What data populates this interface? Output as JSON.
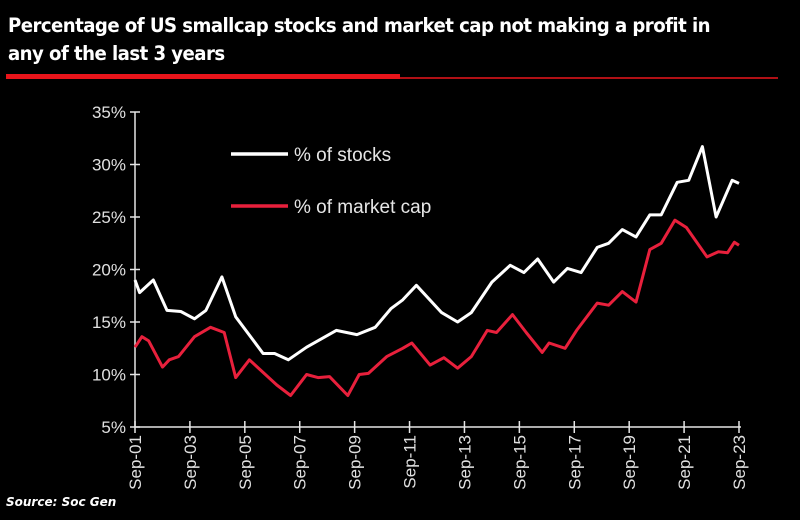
{
  "title": "Percentage of US smallcap stocks and market cap not making a profit in any of the last 3 years",
  "source": "Source: Soc Gen",
  "colors": {
    "background": "#000000",
    "stocks": "#ffffff",
    "market_cap": "#e8203c",
    "accent_rule": "#e8141a"
  },
  "chart_data": {
    "type": "line",
    "title": "",
    "xlabel": "",
    "ylabel": "",
    "ylim": [
      5,
      35
    ],
    "xlim": [
      "2001-09",
      "2023-09"
    ],
    "y_ticks": [
      "5%",
      "10%",
      "15%",
      "20%",
      "25%",
      "30%",
      "35%"
    ],
    "y_tick_values": [
      5,
      10,
      15,
      20,
      25,
      30,
      35
    ],
    "x_ticks": [
      "Sep-01",
      "Sep-03",
      "Sep-05",
      "Sep-07",
      "Sep-09",
      "Sep-11",
      "Sep-13",
      "Sep-15",
      "Sep-17",
      "Sep-19",
      "Sep-21",
      "Sep-23"
    ],
    "x_tick_values": [
      "2001-09",
      "2003-09",
      "2005-09",
      "2007-09",
      "2009-09",
      "2011-09",
      "2013-09",
      "2015-09",
      "2017-09",
      "2019-09",
      "2021-09",
      "2023-09"
    ],
    "grid": false,
    "legend_placement": "top-center",
    "series": [
      {
        "name": "% of stocks",
        "color": "#ffffff",
        "points": [
          [
            "2001-09",
            19.0
          ],
          [
            "2001-11",
            17.8
          ],
          [
            "2002-05",
            19.0
          ],
          [
            "2002-11",
            16.1
          ],
          [
            "2003-05",
            16.0
          ],
          [
            "2003-11",
            15.3
          ],
          [
            "2004-04",
            16.1
          ],
          [
            "2004-11",
            19.3
          ],
          [
            "2005-05",
            15.5
          ],
          [
            "2006-05",
            12.0
          ],
          [
            "2006-10",
            12.0
          ],
          [
            "2007-04",
            11.4
          ],
          [
            "2007-12",
            12.6
          ],
          [
            "2009-01",
            14.2
          ],
          [
            "2009-10",
            13.8
          ],
          [
            "2010-06",
            14.5
          ],
          [
            "2011-01",
            16.3
          ],
          [
            "2011-06",
            17.1
          ],
          [
            "2011-12",
            18.5
          ],
          [
            "2012-11",
            15.9
          ],
          [
            "2013-06",
            15.0
          ],
          [
            "2013-12",
            15.9
          ],
          [
            "2014-09",
            18.8
          ],
          [
            "2015-05",
            20.4
          ],
          [
            "2015-11",
            19.7
          ],
          [
            "2016-05",
            21.0
          ],
          [
            "2016-12",
            18.8
          ],
          [
            "2017-06",
            20.1
          ],
          [
            "2017-12",
            19.7
          ],
          [
            "2018-07",
            22.1
          ],
          [
            "2018-12",
            22.5
          ],
          [
            "2019-06",
            23.8
          ],
          [
            "2019-12",
            23.1
          ],
          [
            "2020-06",
            25.2
          ],
          [
            "2020-11",
            25.2
          ],
          [
            "2021-06",
            28.3
          ],
          [
            "2021-11",
            28.5
          ],
          [
            "2022-05",
            31.7
          ],
          [
            "2022-11",
            25.0
          ],
          [
            "2023-06",
            28.5
          ],
          [
            "2023-09",
            28.2
          ]
        ]
      },
      {
        "name": "% of market cap",
        "color": "#e8203c",
        "points": [
          [
            "2001-09",
            12.6
          ],
          [
            "2001-12",
            13.6
          ],
          [
            "2002-03",
            13.2
          ],
          [
            "2002-09",
            10.7
          ],
          [
            "2002-12",
            11.4
          ],
          [
            "2003-04",
            11.7
          ],
          [
            "2003-11",
            13.6
          ],
          [
            "2004-06",
            14.5
          ],
          [
            "2004-12",
            14.0
          ],
          [
            "2005-05",
            9.7
          ],
          [
            "2005-11",
            11.4
          ],
          [
            "2006-11",
            9.0
          ],
          [
            "2007-05",
            8.0
          ],
          [
            "2007-12",
            10.0
          ],
          [
            "2008-05",
            9.7
          ],
          [
            "2008-10",
            9.8
          ],
          [
            "2009-06",
            8.0
          ],
          [
            "2009-11",
            10.0
          ],
          [
            "2010-03",
            10.1
          ],
          [
            "2010-11",
            11.7
          ],
          [
            "2011-06",
            12.5
          ],
          [
            "2011-10",
            13.0
          ],
          [
            "2012-06",
            10.9
          ],
          [
            "2012-12",
            11.6
          ],
          [
            "2013-06",
            10.6
          ],
          [
            "2013-12",
            11.7
          ],
          [
            "2014-07",
            14.2
          ],
          [
            "2014-11",
            14.0
          ],
          [
            "2015-06",
            15.7
          ],
          [
            "2015-12",
            14.0
          ],
          [
            "2016-07",
            12.1
          ],
          [
            "2016-10",
            13.0
          ],
          [
            "2017-05",
            12.5
          ],
          [
            "2017-10",
            14.2
          ],
          [
            "2018-07",
            16.8
          ],
          [
            "2018-12",
            16.6
          ],
          [
            "2019-06",
            17.9
          ],
          [
            "2019-12",
            16.9
          ],
          [
            "2020-06",
            21.9
          ],
          [
            "2020-11",
            22.5
          ],
          [
            "2021-05",
            24.7
          ],
          [
            "2021-10",
            24.0
          ],
          [
            "2022-07",
            21.2
          ],
          [
            "2022-12",
            21.7
          ],
          [
            "2023-04",
            21.6
          ],
          [
            "2023-07",
            22.6
          ],
          [
            "2023-09",
            22.3
          ]
        ]
      }
    ]
  }
}
